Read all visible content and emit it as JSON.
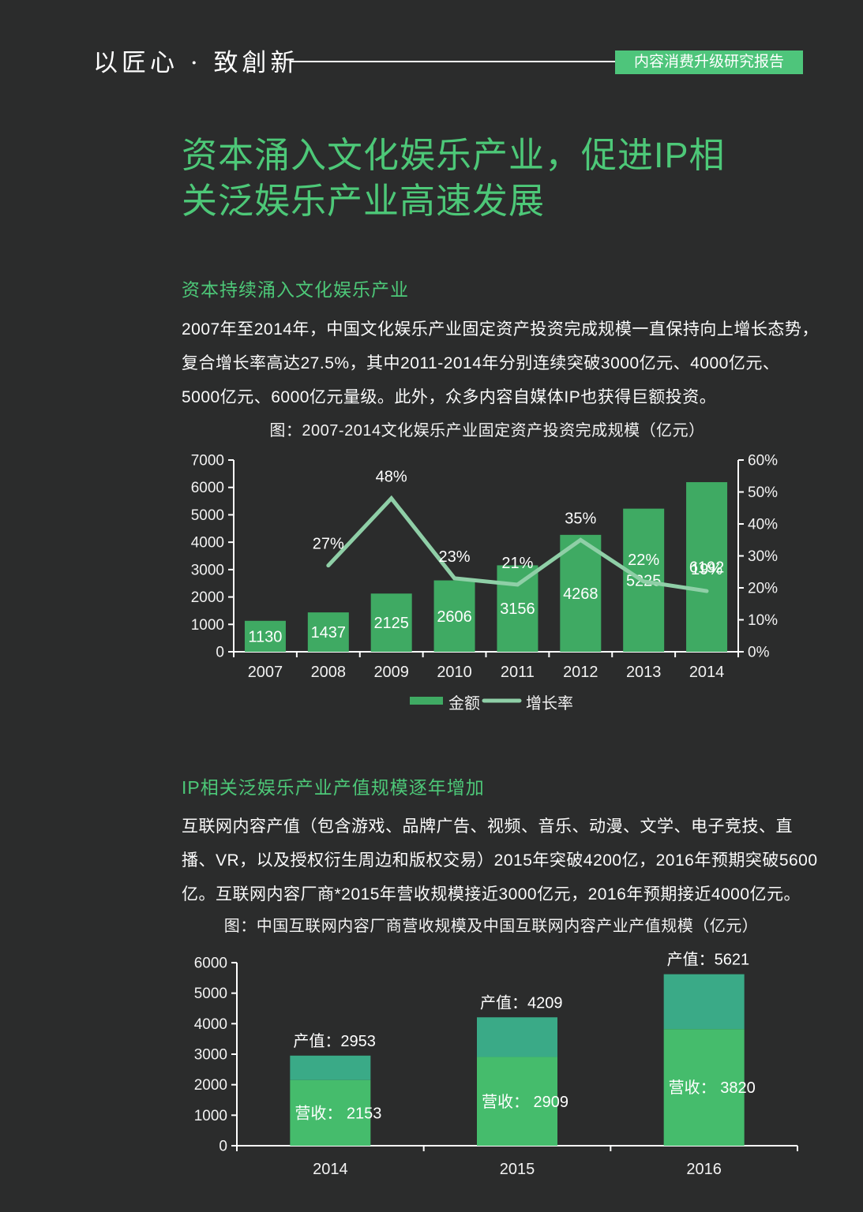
{
  "header": {
    "brand": "以匠心 · 致創新",
    "badge": "内容消费升级研究报告",
    "badge_color": "#4ec57b"
  },
  "title": {
    "line1": "资本涌入文化娱乐产业，促进IP相",
    "line2": "关泛娱乐产业高速发展",
    "color": "#4dc878"
  },
  "sections": [
    {
      "heading": "资本持续涌入文化娱乐产业",
      "paragraph_lines": [
        "2007年至2014年，中国文化娱乐产业固定资产投资完成规模一直保持向上增长态势，",
        "复合增长率高达27.5%，其中2011-2014年分别连续突破3000亿元、4000亿元、",
        "5000亿元、6000亿元量级。此外，众多内容自媒体IP也获得巨额投资。"
      ]
    },
    {
      "heading": "IP相关泛娱乐产业产值规模逐年增加",
      "paragraph_lines": [
        "互联网内容产值（包含游戏、品牌广告、视频、音乐、动漫、文学、电子竞技、直",
        "播、VR，以及授权衍生周边和版权交易）2015年突破4200亿，2016年预期突破5600",
        "亿。互联网内容厂商*2015年营收规模接近3000亿元，2016年预期接近4000亿元。"
      ]
    }
  ],
  "chart_data": [
    {
      "type": "bar",
      "subtype": "bar+line combo, dual axis",
      "title": "图：2007-2014文化娱乐产业固定资产投资完成规模（亿元）",
      "categories": [
        "2007",
        "2008",
        "2009",
        "2010",
        "2011",
        "2012",
        "2013",
        "2014"
      ],
      "series": [
        {
          "name": "金额",
          "type": "bar",
          "axis": "left",
          "values": [
            1130,
            1437,
            2125,
            2606,
            3156,
            4268,
            5225,
            6192
          ],
          "color": "#3faa63"
        },
        {
          "name": "增长率",
          "type": "line",
          "axis": "right",
          "suffix": "%",
          "values": [
            null,
            27,
            48,
            23,
            21,
            35,
            22,
            19
          ],
          "color": "#8fcfa7"
        }
      ],
      "left_axis": {
        "min": 0,
        "max": 7000,
        "step": 1000
      },
      "right_axis": {
        "min": 0,
        "max": 60,
        "step": 10,
        "suffix": "%"
      },
      "legend": [
        "金额",
        "增长率"
      ],
      "legend_position": "bottom",
      "grid": false,
      "text_color": "#f2f2f2",
      "axis_color": "#ffffff"
    },
    {
      "type": "bar",
      "subtype": "stacked bar",
      "title": "图：中国互联网内容厂商营收规模及中国互联网内容产业产值规模（亿元）",
      "categories": [
        "2014",
        "2015",
        "2016"
      ],
      "series": [
        {
          "name": "营收",
          "values": [
            2153,
            2909,
            3820
          ],
          "color": "#45bc6c"
        },
        {
          "name": "产值(总计)",
          "values": [
            2953,
            4209,
            5621
          ],
          "color": "#3aaa87",
          "note": "产值为总高度，上段=产值-营收"
        }
      ],
      "value_labels": [
        "产值：2953",
        "产值：4209",
        "产值：5621"
      ],
      "revenue_labels": [
        "营收： 2153",
        "营收： 2909",
        "营收： 3820"
      ],
      "left_axis": {
        "min": 0,
        "max": 6000,
        "step": 1000
      },
      "grid": false,
      "text_color": "#f2f2f2",
      "axis_color": "#ffffff"
    }
  ]
}
